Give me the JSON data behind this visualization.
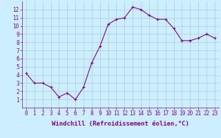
{
  "x": [
    0,
    1,
    2,
    3,
    4,
    5,
    6,
    7,
    8,
    9,
    10,
    11,
    12,
    13,
    14,
    15,
    16,
    17,
    18,
    19,
    20,
    21,
    22,
    23
  ],
  "y": [
    4.2,
    3.0,
    3.0,
    2.5,
    1.3,
    1.8,
    1.0,
    2.5,
    5.5,
    7.5,
    10.2,
    10.8,
    11.0,
    12.3,
    12.0,
    11.3,
    10.8,
    10.8,
    9.7,
    8.2,
    8.2,
    8.5,
    9.0,
    8.5
  ],
  "line_color": "#800080",
  "marker": "+",
  "marker_size": 3,
  "bg_color": "#cceeff",
  "grid_color": "#aacccc",
  "xlabel": "Windchill (Refroidissement éolien,°C)",
  "xlabel_color": "#800080",
  "tick_color": "#800080",
  "xlim": [
    -0.5,
    23.5
  ],
  "ylim": [
    0,
    13
  ],
  "xticks": [
    0,
    1,
    2,
    3,
    4,
    5,
    6,
    7,
    8,
    9,
    10,
    11,
    12,
    13,
    14,
    15,
    16,
    17,
    18,
    19,
    20,
    21,
    22,
    23
  ],
  "yticks": [
    1,
    2,
    3,
    4,
    5,
    6,
    7,
    8,
    9,
    10,
    11,
    12
  ],
  "tick_fontsize": 5.5,
  "xlabel_fontsize": 6.5
}
